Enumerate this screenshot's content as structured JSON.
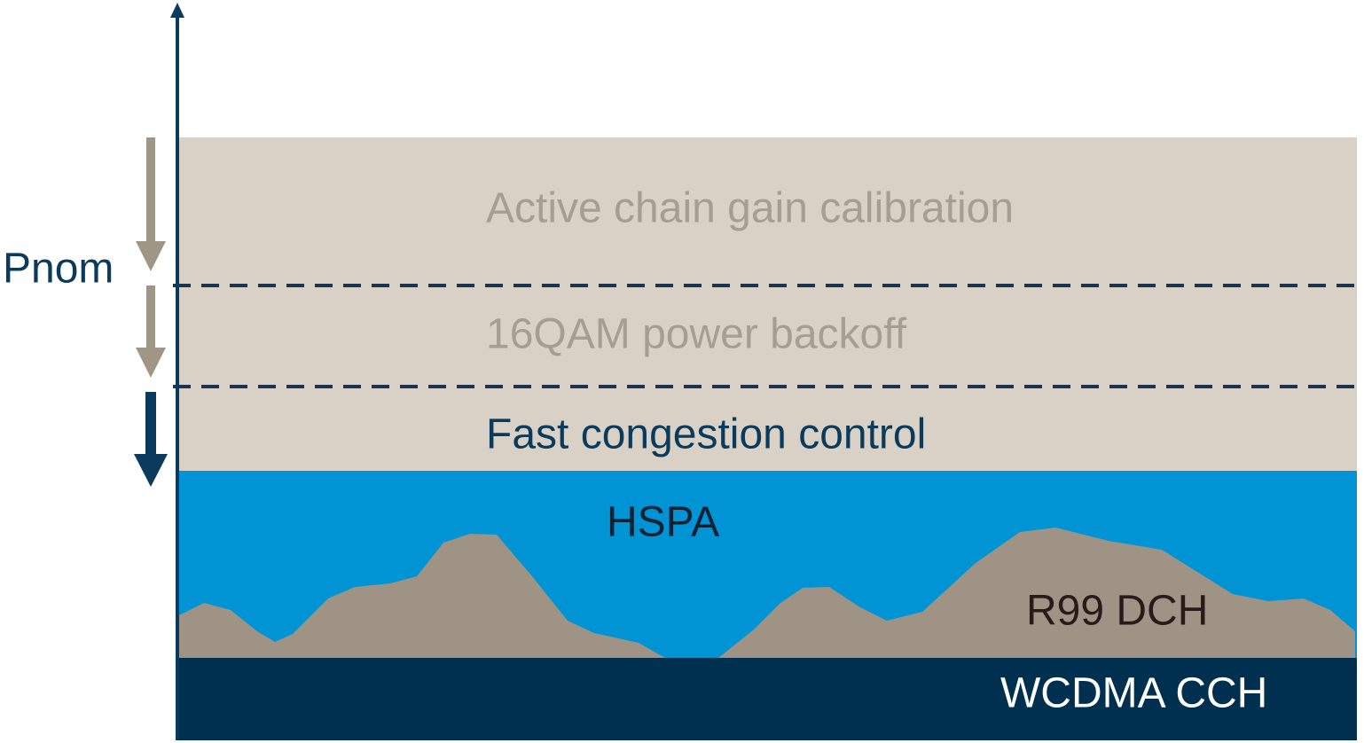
{
  "axis_label": "Pnom",
  "layers": {
    "calibration": "Active chain gain calibration",
    "backoff": "16QAM power backoff",
    "congestion": "Fast congestion control",
    "hspa": "HSPA",
    "r99": "R99 DCH",
    "cch": "WCDMA CCH"
  }
}
